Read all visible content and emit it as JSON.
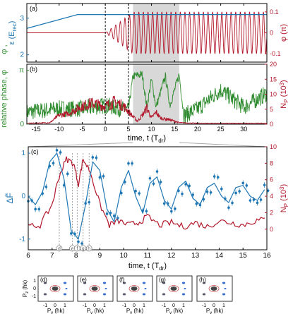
{
  "colors": {
    "blue": "#1f77b4",
    "red": "#b2182b",
    "green": "#2e8b2e",
    "gray": "#c8c8c8",
    "black": "#000000"
  },
  "chart_data": [
    {
      "panel": "(a)",
      "type": "line",
      "x_range": [
        -17,
        35
      ],
      "left_axis": {
        "label": "ε (E_rec)",
        "ticks": [
          2,
          3
        ],
        "ylim": [
          1.8,
          3.4
        ]
      },
      "right_axis": {
        "label": "φ (π)",
        "ticks": [
          "0.1",
          "0",
          "-0.1"
        ],
        "ylim": [
          -0.14,
          0.14
        ]
      },
      "series": [
        {
          "color": "blue",
          "x": [
            -17,
            -6,
            35
          ],
          "y": [
            2.72,
            3.1,
            3.1
          ]
        },
        {
          "color": "red",
          "note": "zero before t=0, then oscillation amplitude ramps to 0.1 π",
          "x_start": 0,
          "amplitude": 0.1
        }
      ],
      "vlines_dashed": [
        0,
        5
      ],
      "shaded_region": [
        6,
        16
      ]
    },
    {
      "panel": "(b)",
      "type": "line",
      "xlabel": "time, t (T_dr)",
      "x_ticks": [
        -15,
        -10,
        -5,
        0,
        5,
        10,
        15,
        20,
        25,
        30
      ],
      "x_range": [
        -17,
        35
      ],
      "left_axis": {
        "label": "relative phase, φ",
        "ticks": [
          "0",
          "π"
        ],
        "ylim": [
          0,
          3.14
        ]
      },
      "right_axis": {
        "label": "N_P (10³)",
        "ticks": [
          0,
          5,
          10,
          15,
          20
        ],
        "ylim": [
          0,
          20
        ]
      },
      "series": [
        {
          "name": "relative phase",
          "color": "green",
          "x": [
            -17,
            -10,
            -5,
            0,
            5,
            6,
            8,
            9,
            10,
            11,
            13,
            14,
            16,
            17,
            20,
            25,
            30,
            35
          ],
          "y": [
            0.7,
            0.9,
            0.9,
            1.1,
            0.8,
            2.8,
            2.9,
            1.0,
            2.6,
            1.0,
            2.8,
            1.1,
            2.9,
            0.5,
            0.9,
            2.0,
            1.0,
            1.8
          ]
        },
        {
          "name": "N_P",
          "color": "red",
          "x": [
            -17,
            -12,
            -10,
            -8,
            -5,
            -3,
            0,
            2,
            4,
            6,
            7,
            8,
            9,
            10,
            11,
            12,
            14,
            16,
            20,
            35
          ],
          "y": [
            0.3,
            0.5,
            3,
            3.5,
            6,
            7,
            6,
            7.5,
            6,
            2.5,
            1,
            3,
            5.5,
            2,
            4,
            2,
            1.5,
            0.5,
            0.3,
            0.3
          ]
        }
      ],
      "vlines_dashed": [
        0,
        5
      ],
      "shaded_region": [
        6,
        16
      ]
    },
    {
      "panel": "(c)",
      "type": "line",
      "xlabel": "time, t (T_dr)",
      "x_ticks": [
        6,
        7,
        8,
        9,
        10,
        11,
        12,
        13,
        14,
        15,
        16
      ],
      "x_range": [
        6,
        16
      ],
      "left_axis": {
        "label": "ΔF̃",
        "ticks": [
          -1,
          0,
          1
        ],
        "ylim": [
          -1.25,
          1.15
        ]
      },
      "right_axis": {
        "label": "N_P (10³)",
        "ticks": [
          0,
          2,
          4,
          6,
          8,
          10
        ],
        "ylim": [
          -2.5,
          10
        ]
      },
      "series": [
        {
          "name": "ΔF̃ fit",
          "color": "blue",
          "x": [
            6.0,
            6.3,
            6.6,
            6.9,
            7.2,
            7.5,
            7.8,
            8.1,
            8.4,
            8.7,
            9.0,
            9.3,
            9.6,
            9.9,
            10.2,
            10.5,
            10.8,
            11.1,
            11.4,
            11.7,
            12.0,
            12.3,
            12.6,
            12.9,
            13.2,
            13.5,
            13.8,
            14.1,
            14.4,
            14.7,
            15.0,
            15.3,
            15.6,
            15.9
          ],
          "y": [
            0.0,
            -0.2,
            0.1,
            0.8,
            1.0,
            0.4,
            -0.8,
            -1.0,
            -0.2,
            0.8,
            0.6,
            -0.3,
            -0.6,
            0.2,
            0.6,
            0.0,
            -0.4,
            0.3,
            0.45,
            -0.1,
            -0.3,
            0.2,
            0.35,
            -0.05,
            -0.2,
            0.2,
            0.3,
            0.0,
            -0.15,
            0.2,
            0.25,
            0.0,
            -0.1,
            0.15
          ]
        },
        {
          "name": "N_P",
          "color": "red",
          "x": [
            6.0,
            6.5,
            7.0,
            7.3,
            7.6,
            7.9,
            8.1,
            8.3,
            8.6,
            9.0,
            9.4,
            9.8,
            10.2,
            10.6,
            11.0,
            11.5,
            12.0,
            12.5,
            13.0,
            13.5,
            14.0,
            14.5,
            15.0,
            15.5,
            16.0
          ],
          "y": [
            0.3,
            0.5,
            3.0,
            6.5,
            8.5,
            8.0,
            5.5,
            8.5,
            7.0,
            3.0,
            0.5,
            1.0,
            0.5,
            0.8,
            1.5,
            0.5,
            0.8,
            0.3,
            0.8,
            0.3,
            1.0,
            0.8,
            0.5,
            1.0,
            1.2
          ]
        }
      ],
      "markers": [
        "d",
        "e",
        "f",
        "g",
        "h"
      ],
      "marker_x": [
        7.3,
        7.85,
        8.05,
        8.3,
        8.55
      ]
    }
  ],
  "panel_a_label": "(a)",
  "panel_b_label": "(b)",
  "panel_c_label": "(c)",
  "axis_a_left": "ε (E",
  "axis_a_left_sub": "rec",
  "axis_a_right": "φ (π)",
  "axis_a_color_prefix": "φ",
  "axis_b_left": "relative phase, φ",
  "axis_b_right": "N",
  "axis_b_right_sub": "P",
  "axis_b_right_unit": "(10",
  "axis_b_xlabel": "time, t (T",
  "axis_b_xlabel_sub": "dr",
  "axis_c_left": "ΔF̃",
  "axis_c_xlabel": "time, t (T",
  "axis_c_xlabel_sub": "dr",
  "insets": [
    {
      "label": "(d)"
    },
    {
      "label": "(e)"
    },
    {
      "label": "(f)"
    },
    {
      "label": "(g)"
    },
    {
      "label": "(h)"
    }
  ],
  "inset_xlabel": "P",
  "inset_xlabel_sub": "y",
  "inset_xunit": "(ħk)",
  "inset_ylabel": "P",
  "inset_ylabel_sub": "z",
  "inset_ticks": [
    "-1",
    "0",
    "1"
  ]
}
